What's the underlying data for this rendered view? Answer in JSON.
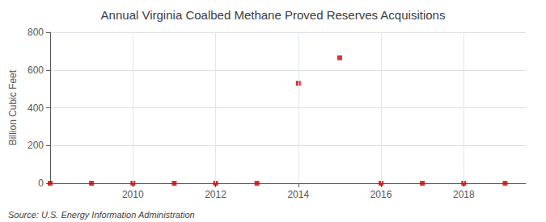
{
  "chart_data": {
    "type": "scatter",
    "title": "Annual Virginia Coalbed Methane Proved Reserves Acquisitions",
    "ylabel": "Billion Cubic Feet",
    "annotations": [
      "Source: U.S. Energy Information Administration"
    ],
    "x": [
      2008,
      2009,
      2010,
      2011,
      2012,
      2013,
      2014,
      2015,
      2016,
      2017,
      2018,
      2019
    ],
    "values": [
      0,
      0,
      0,
      0,
      0,
      0,
      530,
      665,
      0,
      0,
      0,
      0
    ],
    "color": "#cc0000",
    "marker": "square",
    "xlim": [
      2008.0,
      2019.5
    ],
    "ylim": [
      0,
      800
    ],
    "xticks": [
      2010,
      2012,
      2014,
      2016,
      2018
    ],
    "yticks": [
      0,
      200,
      400,
      600,
      800
    ],
    "grid": true
  }
}
